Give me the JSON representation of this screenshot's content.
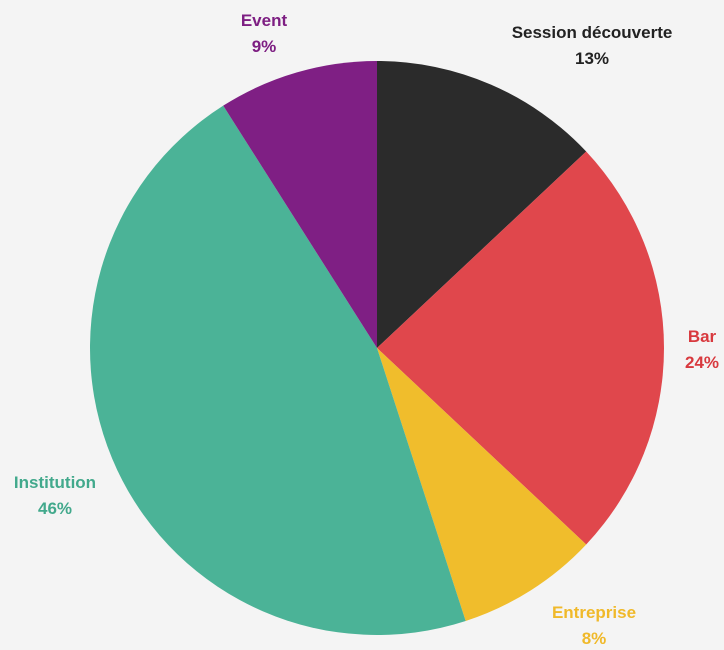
{
  "chart_data": {
    "type": "pie",
    "start_angle_deg": 0,
    "direction": "clockwise",
    "slices": [
      {
        "label": "Session découverte",
        "percent_label": "13%",
        "value": 13,
        "color": "#2b2b2b",
        "label_color": "#222222"
      },
      {
        "label": "Bar",
        "percent_label": "24%",
        "value": 24,
        "color": "#e0474c",
        "label_color": "#d8393e"
      },
      {
        "label": "Entreprise",
        "percent_label": "8%",
        "value": 8,
        "color": "#f0bd2c",
        "label_color": "#f0b92a"
      },
      {
        "label": "Institution",
        "percent_label": "46%",
        "value": 46,
        "color": "#4bb397",
        "label_color": "#42a98c"
      },
      {
        "label": "Event",
        "percent_label": "9%",
        "value": 9,
        "color": "#7f1f84",
        "label_color": "#7d1e82"
      }
    ]
  }
}
